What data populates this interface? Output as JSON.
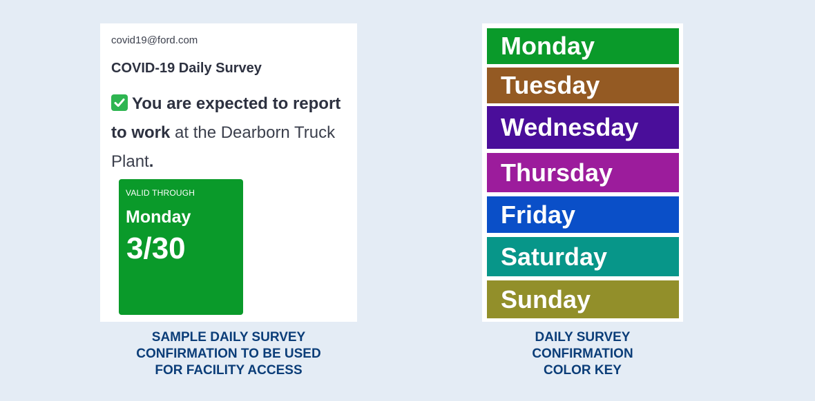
{
  "survey": {
    "sender": "covid19@ford.com",
    "title": "COVID-19 Daily Survey",
    "message_bold": "You are expected to report to work",
    "message_rest": " at the Dearborn Truck Plant",
    "message_end": ".",
    "valid_label": "VALID THROUGH",
    "valid_day": "Monday",
    "valid_date": "3/30",
    "valid_color": "#0a9a2a"
  },
  "captions": {
    "left": [
      "SAMPLE DAILY SURVEY",
      "CONFIRMATION TO BE USED",
      "FOR FACILITY ACCESS"
    ],
    "right": [
      "DAILY SURVEY",
      "CONFIRMATION",
      "COLOR KEY"
    ]
  },
  "color_key": [
    {
      "day": "Monday",
      "color": "#0a9a2a"
    },
    {
      "day": "Tuesday",
      "color": "#945a23"
    },
    {
      "day": "Wednesday",
      "color": "#4a0e9a"
    },
    {
      "day": "Thursday",
      "color": "#9c1c9c"
    },
    {
      "day": "Friday",
      "color": "#0a4fc8"
    },
    {
      "day": "Saturday",
      "color": "#079689"
    },
    {
      "day": "Sunday",
      "color": "#928f2a"
    }
  ]
}
